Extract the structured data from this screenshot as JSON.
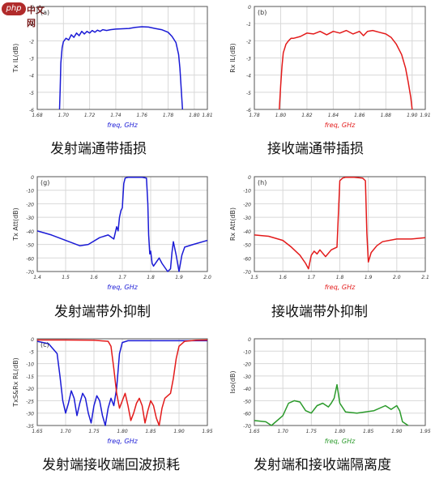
{
  "watermark": {
    "badge": "php",
    "site": "中文网"
  },
  "captions": {
    "a": "发射端通带插损",
    "b": "接收端通带插损",
    "g": "发射端带外抑制",
    "h": "接收端带外抑制",
    "c": "发射端接收端回波损耗",
    "d": "发射端和接收端隔离度"
  },
  "chart_data": [
    {
      "id": "a",
      "type": "line",
      "panel_label": "(a)",
      "xlabel": "freq, GHz",
      "ylabel": "Tx IL(dB)",
      "xlim": [
        1.68,
        1.81
      ],
      "ylim": [
        -6,
        0
      ],
      "xticks": [
        "1.68",
        "1.70",
        "1.72",
        "1.74",
        "1.76",
        "1.78",
        "1.80",
        "1.81"
      ],
      "yticks": [
        "0",
        "-1",
        "-2",
        "-3",
        "-4",
        "-5",
        "-6"
      ],
      "color": "#1a1ad6",
      "series": [
        {
          "x": [
            1.697,
            1.6975,
            1.698,
            1.699,
            1.7,
            1.702,
            1.704,
            1.706,
            1.708,
            1.71,
            1.712,
            1.714,
            1.716,
            1.718,
            1.72,
            1.722,
            1.724,
            1.726,
            1.728,
            1.73,
            1.733,
            1.736,
            1.74,
            1.745,
            1.75,
            1.755,
            1.76,
            1.765,
            1.77,
            1.775,
            1.78,
            1.783,
            1.786,
            1.788,
            1.789,
            1.79,
            1.791
          ],
          "y": [
            -6.0,
            -4.8,
            -3.3,
            -2.4,
            -2.05,
            -1.85,
            -1.95,
            -1.65,
            -1.8,
            -1.55,
            -1.7,
            -1.45,
            -1.6,
            -1.45,
            -1.55,
            -1.4,
            -1.5,
            -1.38,
            -1.45,
            -1.35,
            -1.4,
            -1.35,
            -1.32,
            -1.3,
            -1.28,
            -1.22,
            -1.18,
            -1.2,
            -1.28,
            -1.35,
            -1.5,
            -1.75,
            -2.1,
            -2.8,
            -3.6,
            -4.8,
            -6.0
          ]
        }
      ]
    },
    {
      "id": "b",
      "type": "line",
      "panel_label": "(b)",
      "xlabel": "freq, GHz",
      "ylabel": "Rx IL(dB)",
      "xlim": [
        1.78,
        1.91
      ],
      "ylim": [
        -6,
        0
      ],
      "xticks": [
        "1.78",
        "1.80",
        "1.82",
        "1.84",
        "1.86",
        "1.88",
        "1.90",
        "1.91"
      ],
      "yticks": [
        "0",
        "-1",
        "-2",
        "-3",
        "-4",
        "-5",
        "-6"
      ],
      "color": "#e31a1a",
      "series": [
        {
          "x": [
            1.799,
            1.8,
            1.801,
            1.802,
            1.804,
            1.806,
            1.808,
            1.81,
            1.815,
            1.82,
            1.825,
            1.83,
            1.835,
            1.84,
            1.845,
            1.85,
            1.855,
            1.86,
            1.863,
            1.866,
            1.87,
            1.875,
            1.88,
            1.884,
            1.888,
            1.892,
            1.895,
            1.897,
            1.899,
            1.9
          ],
          "y": [
            -6.0,
            -4.6,
            -3.5,
            -2.7,
            -2.2,
            -2.0,
            -1.85,
            -1.85,
            -1.75,
            -1.55,
            -1.6,
            -1.45,
            -1.65,
            -1.45,
            -1.55,
            -1.4,
            -1.6,
            -1.45,
            -1.7,
            -1.45,
            -1.4,
            -1.5,
            -1.6,
            -1.8,
            -2.2,
            -2.8,
            -3.6,
            -4.4,
            -5.3,
            -6.0
          ]
        }
      ]
    },
    {
      "id": "g",
      "type": "line",
      "panel_label": "(g)",
      "xlabel": "freq, GHz",
      "ylabel": "Tx Att(dB)",
      "xlim": [
        1.4,
        2.0
      ],
      "ylim": [
        -70,
        0
      ],
      "xticks": [
        "1.4",
        "1.5",
        "1.6",
        "1.7",
        "1.8",
        "1.9",
        "2.0"
      ],
      "yticks": [
        "0",
        "-10",
        "-20",
        "-30",
        "-40",
        "-50",
        "-60",
        "-70"
      ],
      "color": "#1a1ad6",
      "series": [
        {
          "x": [
            1.4,
            1.45,
            1.5,
            1.55,
            1.58,
            1.62,
            1.65,
            1.67,
            1.68,
            1.685,
            1.69,
            1.695,
            1.7,
            1.705,
            1.71,
            1.72,
            1.73,
            1.75,
            1.77,
            1.785,
            1.79,
            1.793,
            1.797,
            1.8,
            1.805,
            1.81,
            1.82,
            1.83,
            1.84,
            1.86,
            1.87,
            1.875,
            1.88,
            1.89,
            1.9,
            1.91,
            1.92,
            1.95,
            2.0
          ],
          "y": [
            -40,
            -43,
            -47,
            -51,
            -50,
            -45,
            -43,
            -46,
            -37,
            -40,
            -30,
            -25,
            -23,
            -5,
            -1,
            -0.5,
            -0.5,
            -0.5,
            -0.5,
            -1,
            -20,
            -43,
            -57,
            -55,
            -64,
            -66,
            -63,
            -60,
            -64,
            -70,
            -68,
            -56,
            -48,
            -58,
            -70,
            -58,
            -52,
            -50,
            -47
          ]
        }
      ]
    },
    {
      "id": "h",
      "type": "line",
      "panel_label": "(h)",
      "xlabel": "freq, GHz",
      "ylabel": "Rx Att(dB)",
      "xlim": [
        1.5,
        2.1
      ],
      "ylim": [
        -70,
        0
      ],
      "xticks": [
        "1.5",
        "1.6",
        "1.7",
        "1.8",
        "1.9",
        "2.0",
        "2.1"
      ],
      "yticks": [
        "0",
        "-10",
        "-20",
        "-30",
        "-40",
        "-50",
        "-60",
        "-70"
      ],
      "color": "#e31a1a",
      "series": [
        {
          "x": [
            1.5,
            1.55,
            1.6,
            1.63,
            1.66,
            1.68,
            1.69,
            1.7,
            1.71,
            1.72,
            1.73,
            1.75,
            1.77,
            1.78,
            1.79,
            1.795,
            1.8,
            1.81,
            1.82,
            1.85,
            1.88,
            1.89,
            1.895,
            1.9,
            1.91,
            1.93,
            1.95,
            2.0,
            2.05,
            2.1
          ],
          "y": [
            -43,
            -44,
            -47,
            -52,
            -58,
            -64,
            -68,
            -58,
            -55,
            -57,
            -54,
            -59,
            -54,
            -53,
            -52,
            -28,
            -3,
            -1,
            -0.5,
            -0.5,
            -1,
            -3,
            -42,
            -63,
            -56,
            -51,
            -48,
            -46,
            -46,
            -45
          ]
        }
      ]
    },
    {
      "id": "c",
      "type": "line",
      "panel_label": "(c)",
      "xlabel": "freq, GHz",
      "ylabel": "TxS&Rx RL(dB)",
      "xlim": [
        1.65,
        1.95
      ],
      "ylim": [
        -35,
        0
      ],
      "xticks": [
        "1.65",
        "1.70",
        "1.75",
        "1.80",
        "1.85",
        "1.90",
        "1.95"
      ],
      "yticks": [
        "0",
        "-5",
        "-10",
        "-15",
        "-20",
        "-25",
        "-30",
        "-35"
      ],
      "series": [
        {
          "color": "#1a1ad6",
          "x": [
            1.65,
            1.67,
            1.685,
            1.69,
            1.695,
            1.7,
            1.705,
            1.71,
            1.715,
            1.72,
            1.725,
            1.73,
            1.735,
            1.74,
            1.745,
            1.75,
            1.755,
            1.76,
            1.765,
            1.77,
            1.775,
            1.78,
            1.785,
            1.79,
            1.795,
            1.8,
            1.81,
            1.85,
            1.9,
            1.95
          ],
          "y": [
            -1,
            -2,
            -6,
            -15,
            -25,
            -30,
            -26,
            -21,
            -24,
            -31,
            -26,
            -22,
            -24,
            -30,
            -34,
            -27,
            -23,
            -25,
            -31,
            -35,
            -28,
            -24,
            -27,
            -20,
            -6,
            -1.5,
            -0.8,
            -0.8,
            -0.8,
            -0.8
          ]
        },
        {
          "color": "#e31a1a",
          "x": [
            1.65,
            1.7,
            1.75,
            1.775,
            1.78,
            1.785,
            1.79,
            1.795,
            1.8,
            1.805,
            1.81,
            1.815,
            1.82,
            1.825,
            1.83,
            1.835,
            1.84,
            1.845,
            1.85,
            1.855,
            1.86,
            1.865,
            1.87,
            1.875,
            1.88,
            1.885,
            1.89,
            1.895,
            1.9,
            1.91,
            1.93,
            1.95
          ],
          "y": [
            -0.5,
            -0.5,
            -0.6,
            -1,
            -3,
            -12,
            -22,
            -28,
            -25,
            -22,
            -27,
            -33,
            -30,
            -26,
            -24,
            -27,
            -34,
            -29,
            -25,
            -27,
            -32,
            -35,
            -28,
            -24,
            -23,
            -22,
            -16,
            -8,
            -3,
            -1,
            -0.6,
            -0.5
          ]
        }
      ]
    },
    {
      "id": "d",
      "type": "line",
      "panel_label": "",
      "xlabel": "freq, GHz",
      "ylabel": "Iso(dB)",
      "xlim": [
        1.65,
        1.95
      ],
      "ylim": [
        -70,
        0
      ],
      "xticks": [
        "1.65",
        "1.70",
        "1.75",
        "1.80",
        "1.85",
        "1.90",
        "1.95"
      ],
      "yticks": [
        "0",
        "-10",
        "-20",
        "-30",
        "-40",
        "-50",
        "-60",
        "-70"
      ],
      "color": "#2a9a2a",
      "series": [
        {
          "x": [
            1.65,
            1.67,
            1.68,
            1.7,
            1.71,
            1.72,
            1.73,
            1.74,
            1.75,
            1.76,
            1.77,
            1.78,
            1.785,
            1.79,
            1.795,
            1.8,
            1.81,
            1.83,
            1.86,
            1.88,
            1.89,
            1.9,
            1.905,
            1.91,
            1.92
          ],
          "y": [
            -66,
            -67,
            -70,
            -62,
            -52,
            -50,
            -51,
            -58,
            -60,
            -54,
            -52,
            -55,
            -52,
            -48,
            -37,
            -52,
            -59,
            -60,
            -58,
            -54,
            -57,
            -54,
            -58,
            -67,
            -70
          ]
        }
      ]
    }
  ]
}
